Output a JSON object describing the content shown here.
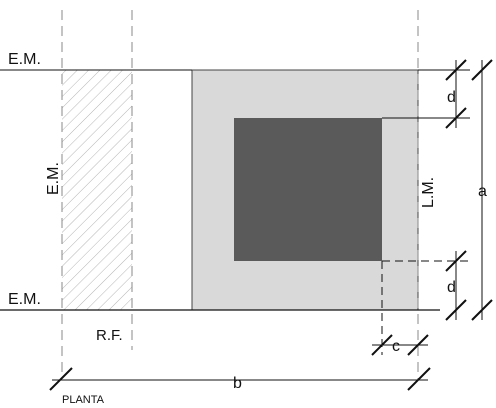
{
  "diagram": {
    "labels": {
      "em_top": "E.M.",
      "em_left": "E.M.",
      "em_bottom": "E.M.",
      "lm": "L.M.",
      "rf": "R.F.",
      "plant": "PLANTA",
      "dim_a": "a",
      "dim_b": "b",
      "dim_c": "c",
      "dim_d_top": "d",
      "dim_d_bottom": "d"
    },
    "colors": {
      "line": "#111111",
      "outer_fill": "#d9d9d9",
      "inner_fill": "#5a5a5a",
      "hatch": "#b5b5b5",
      "dashed": "#8a8a8a"
    }
  }
}
